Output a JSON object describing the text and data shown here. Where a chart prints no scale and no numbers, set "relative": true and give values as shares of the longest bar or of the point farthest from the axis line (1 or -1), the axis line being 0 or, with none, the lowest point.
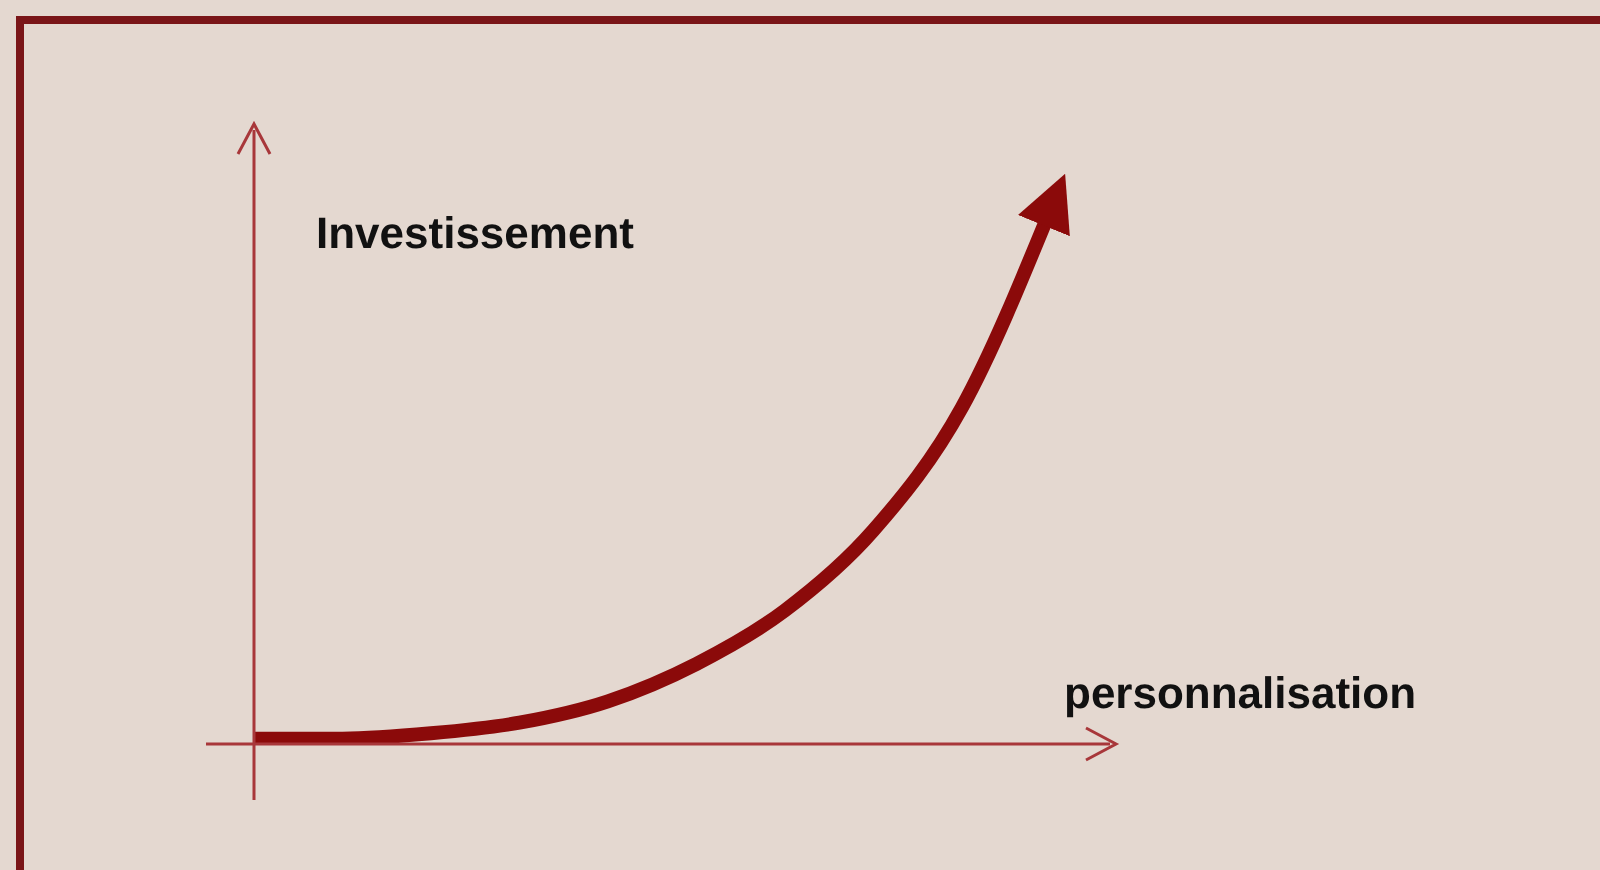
{
  "chart_data": {
    "type": "line",
    "relative": true,
    "xlabel": "personnalisation",
    "ylabel": "Investissement",
    "categories": [
      null,
      null,
      null,
      null,
      null,
      null,
      null,
      null,
      null,
      null
    ],
    "series": [
      {
        "color": "#8b0a0a",
        "values": [
          0.01,
          0.01,
          0.02,
          0.04,
          0.08,
          0.15,
          0.25,
          0.4,
          0.63,
          1
        ]
      }
    ]
  }
}
